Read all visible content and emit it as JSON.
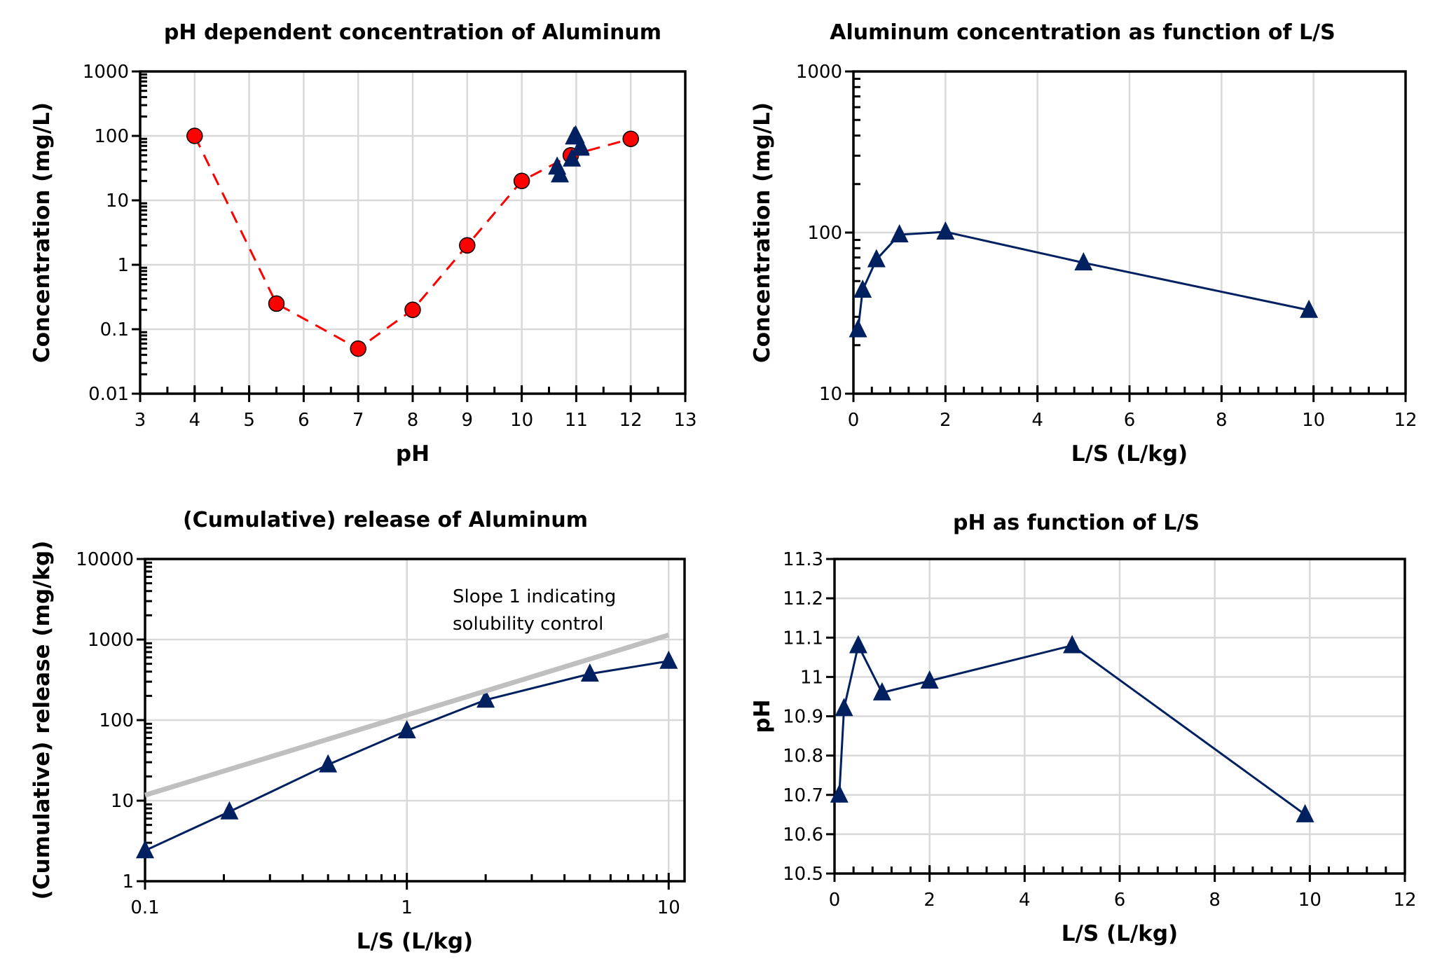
{
  "chart_data": [
    {
      "type": "scatter",
      "title": "pH dependent concentration of Aluminum",
      "xlabel": "pH",
      "ylabel": "Concentration (mg/L)",
      "xlim": [
        3,
        13
      ],
      "ylim": [
        0.01,
        1000
      ],
      "yscale": "log",
      "grid": true,
      "xticks": [
        "3",
        "4",
        "5",
        "6",
        "7",
        "8",
        "9",
        "10",
        "11",
        "12",
        "13"
      ],
      "yticks": [
        "0.01",
        "0.1",
        "1",
        "10",
        "100",
        "1000"
      ],
      "series": [
        {
          "marker": "circle",
          "color": "#ff0000",
          "line": "dashed",
          "x": [
            4,
            5.5,
            7,
            8,
            9,
            10,
            10.9,
            12
          ],
          "y": [
            100,
            0.25,
            0.05,
            0.2,
            2,
            20,
            50,
            90
          ]
        },
        {
          "marker": "triangle",
          "color": "#002060",
          "line": "none",
          "x": [
            10.7,
            10.92,
            11.08,
            10.96,
            10.99,
            11.08,
            10.65
          ],
          "y": [
            25,
            44,
            68,
            97,
            101,
            65,
            33
          ]
        }
      ]
    },
    {
      "type": "line",
      "title": "Aluminum concentration as function of L/S",
      "xlabel": "L/S (L/kg)",
      "ylabel": "Concentration (mg/L)",
      "xlim": [
        0,
        12
      ],
      "ylim": [
        10,
        1000
      ],
      "yscale": "log",
      "grid": true,
      "xticks": [
        "0",
        "2",
        "4",
        "6",
        "8",
        "10",
        "12"
      ],
      "yticks": [
        "10",
        "100",
        "1000"
      ],
      "series": [
        {
          "marker": "triangle",
          "color": "#002060",
          "x": [
            0.1,
            0.2,
            0.5,
            1,
            2,
            5,
            9.9
          ],
          "y": [
            25,
            44,
            68,
            97,
            101,
            65,
            33
          ]
        }
      ]
    },
    {
      "type": "line",
      "title": "(Cumulative) release of Aluminum",
      "xlabel": "L/S (L/kg)",
      "ylabel": "(Cumulative) release (mg/kg)",
      "xlim": [
        0.1,
        11.5
      ],
      "ylim": [
        1,
        10000
      ],
      "xscale": "log",
      "yscale": "log",
      "grid": true,
      "xticks": [
        "0.1",
        "1",
        "10"
      ],
      "yticks": [
        "1",
        "10",
        "100",
        "1000",
        "10000"
      ],
      "annotation": "Slope 1 indicating solubility control",
      "series": [
        {
          "marker": "triangle",
          "color": "#002060",
          "x": [
            0.1,
            0.21,
            0.5,
            1,
            2,
            5,
            10
          ],
          "y": [
            2.4,
            7.3,
            28,
            74,
            178,
            375,
            540
          ]
        },
        {
          "marker": "none",
          "color": "#bfbfbf",
          "role": "reference slope 1",
          "x": [
            0.1,
            10
          ],
          "y": [
            11.7,
            1140
          ]
        }
      ]
    },
    {
      "type": "line",
      "title": "pH as function of L/S",
      "xlabel": "L/S (L/kg)",
      "ylabel": "pH",
      "xlim": [
        0,
        12
      ],
      "ylim": [
        10.5,
        11.3
      ],
      "grid": true,
      "xticks": [
        "0",
        "2",
        "4",
        "6",
        "8",
        "10",
        "12"
      ],
      "yticks": [
        "10.5",
        "10.6",
        "10.7",
        "10.8",
        "10.9",
        "11",
        "11.1",
        "11.2",
        "11.3"
      ],
      "series": [
        {
          "marker": "triangle",
          "color": "#002060",
          "x": [
            0.1,
            0.2,
            0.5,
            1,
            2,
            5,
            9.9
          ],
          "y": [
            10.7,
            10.92,
            11.08,
            10.96,
            10.99,
            11.08,
            10.65
          ]
        }
      ]
    }
  ]
}
